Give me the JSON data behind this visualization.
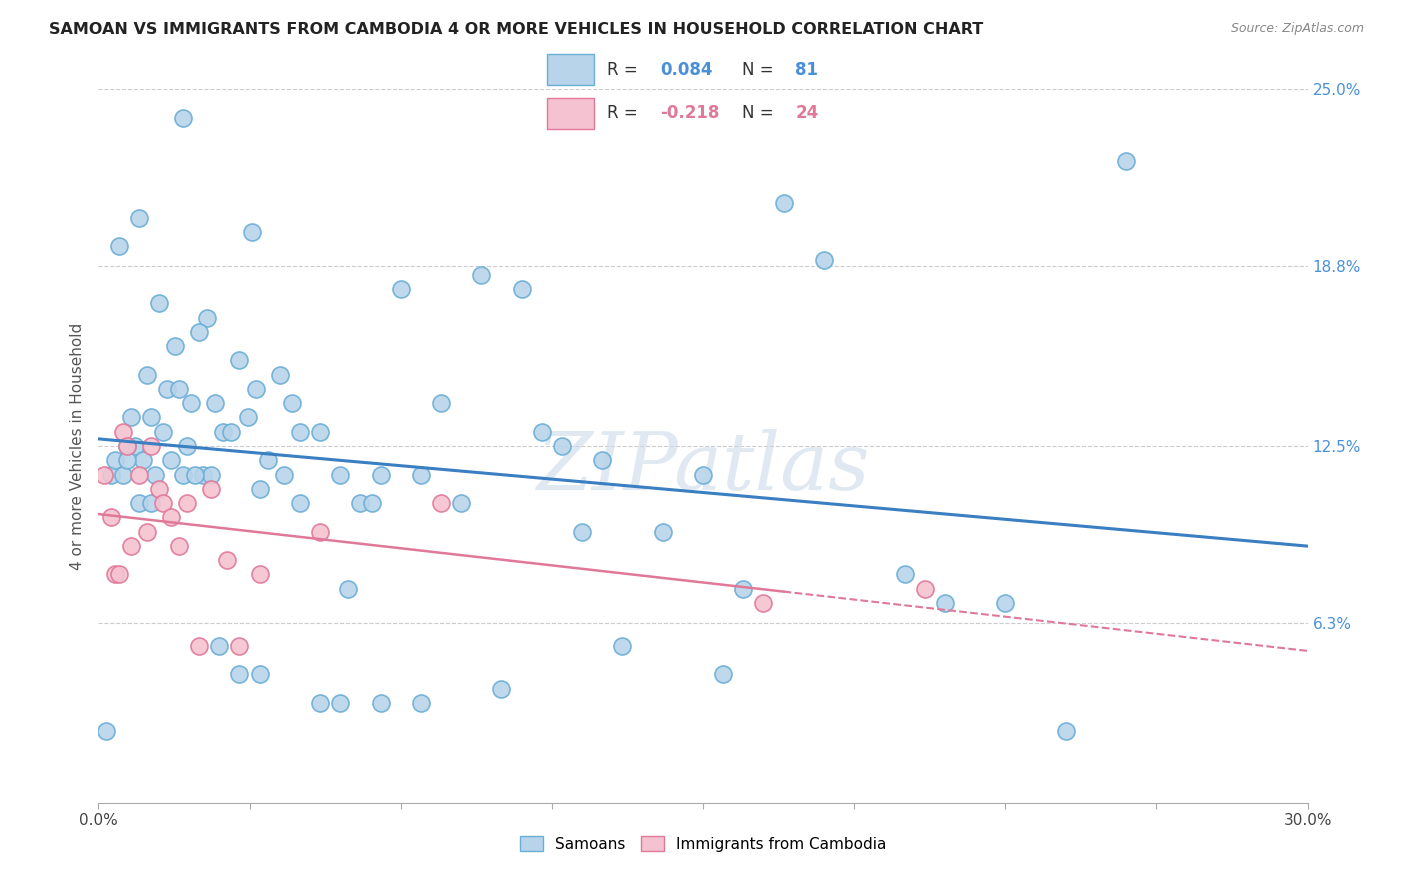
{
  "title": "SAMOAN VS IMMIGRANTS FROM CAMBODIA 4 OR MORE VEHICLES IN HOUSEHOLD CORRELATION CHART",
  "source": "Source: ZipAtlas.com",
  "ylabel": "4 or more Vehicles in Household",
  "x_min": 0.0,
  "x_max": 30.0,
  "y_min": 0.0,
  "y_max": 25.0,
  "y_ticks_right": [
    6.3,
    12.5,
    18.8,
    25.0
  ],
  "x_tick_positions": [
    0.0,
    3.75,
    7.5,
    11.25,
    15.0,
    18.75,
    22.5,
    26.25,
    30.0
  ],
  "x_tick_labels_show": {
    "0": "0.0%",
    "8": "30.0%"
  },
  "blue_R": 0.084,
  "blue_N": 81,
  "pink_R": -0.218,
  "pink_N": 24,
  "blue_color": "#b8d4ea",
  "blue_edge": "#6aaed6",
  "pink_color": "#f4c2d0",
  "pink_edge": "#e07898",
  "blue_line_color": "#3a7fc1",
  "pink_line_color": "#e07898",
  "pink_line_solid_end": 17.0,
  "legend_label_blue": "Samoans",
  "legend_label_pink": "Immigrants from Cambodia",
  "watermark": "ZIPatlas",
  "blue_x": [
    2.1,
    0.5,
    1.0,
    3.8,
    1.5,
    2.7,
    1.9,
    2.5,
    3.5,
    4.5,
    1.2,
    1.7,
    2.0,
    2.9,
    1.3,
    1.6,
    0.8,
    3.1,
    2.3,
    0.9,
    1.1,
    2.2,
    1.4,
    2.6,
    3.3,
    4.0,
    3.7,
    1.8,
    0.7,
    2.8,
    5.5,
    6.0,
    4.8,
    3.9,
    5.0,
    7.0,
    6.5,
    4.2,
    8.5,
    7.5,
    9.5,
    10.5,
    8.0,
    6.8,
    11.5,
    12.5,
    14.0,
    15.0,
    17.0,
    18.0,
    20.0,
    21.0,
    22.5,
    25.5,
    0.3,
    0.4,
    0.6,
    0.7,
    1.0,
    1.3,
    2.1,
    2.4,
    3.0,
    3.5,
    4.0,
    5.0,
    5.5,
    6.0,
    7.0,
    8.0,
    10.0,
    11.0,
    13.0,
    15.5,
    9.0,
    4.6,
    6.2,
    12.0,
    0.2,
    16.0,
    24.0
  ],
  "blue_y": [
    24.0,
    19.5,
    20.5,
    20.0,
    17.5,
    17.0,
    16.0,
    16.5,
    15.5,
    15.0,
    15.0,
    14.5,
    14.5,
    14.0,
    13.5,
    13.0,
    13.5,
    13.0,
    14.0,
    12.5,
    12.0,
    12.5,
    11.5,
    11.5,
    13.0,
    11.0,
    13.5,
    12.0,
    12.5,
    11.5,
    13.0,
    11.5,
    14.0,
    14.5,
    10.5,
    11.5,
    10.5,
    12.0,
    14.0,
    18.0,
    18.5,
    18.0,
    11.5,
    10.5,
    12.5,
    12.0,
    9.5,
    11.5,
    21.0,
    19.0,
    8.0,
    7.0,
    7.0,
    22.5,
    11.5,
    12.0,
    11.5,
    12.0,
    10.5,
    10.5,
    11.5,
    11.5,
    5.5,
    4.5,
    4.5,
    13.0,
    3.5,
    3.5,
    3.5,
    3.5,
    4.0,
    13.0,
    5.5,
    4.5,
    10.5,
    11.5,
    7.5,
    9.5,
    2.5,
    7.5,
    2.5
  ],
  "pink_x": [
    0.15,
    0.3,
    0.4,
    0.5,
    0.6,
    0.7,
    0.8,
    1.0,
    1.2,
    1.3,
    1.5,
    1.6,
    1.8,
    2.0,
    2.2,
    2.5,
    2.8,
    3.2,
    3.5,
    4.0,
    5.5,
    8.5,
    16.5,
    20.5
  ],
  "pink_y": [
    11.5,
    10.0,
    8.0,
    8.0,
    13.0,
    12.5,
    9.0,
    11.5,
    9.5,
    12.5,
    11.0,
    10.5,
    10.0,
    9.0,
    10.5,
    5.5,
    11.0,
    8.5,
    5.5,
    8.0,
    9.5,
    10.5,
    7.0,
    7.5
  ]
}
